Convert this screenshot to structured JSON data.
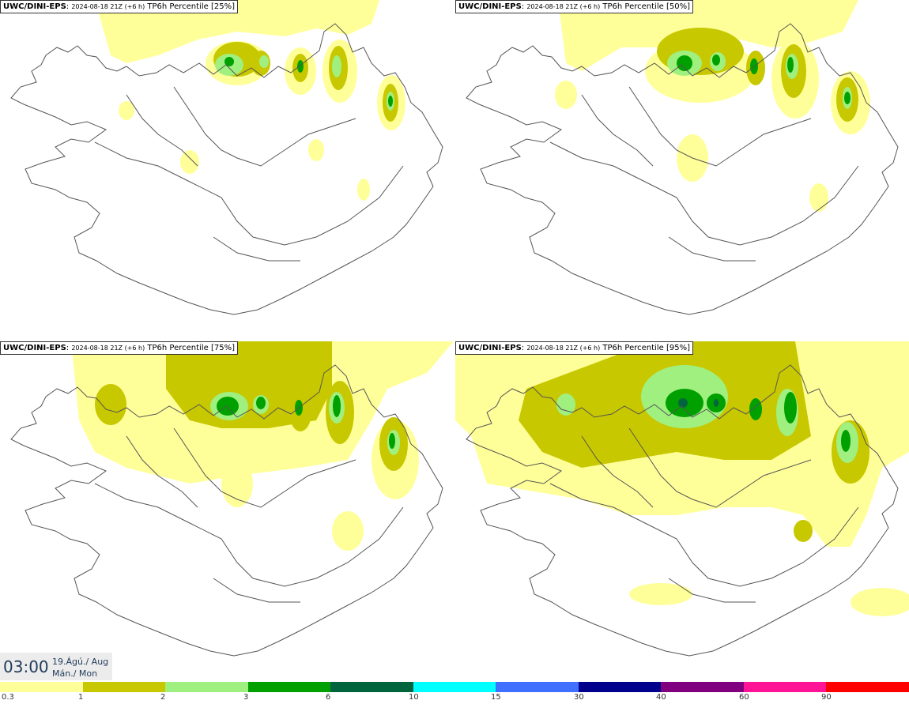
{
  "panels": [
    {
      "model": "UWC/DINI-EPS",
      "run": "2024-08-18 21Z (+6 h)",
      "field": "TP6h Percentile [25%]"
    },
    {
      "model": "UWC/DINI-EPS",
      "run": "2024-08-18 21Z (+6 h)",
      "field": "TP6h Percentile [50%]"
    },
    {
      "model": "UWC/DINI-EPS",
      "run": "2024-08-18 21Z (+6 h)",
      "field": "TP6h Percentile [75%]"
    },
    {
      "model": "UWC/DINI-EPS",
      "run": "2024-08-18 21Z (+6 h)",
      "field": "TP6h Percentile [95%]"
    }
  ],
  "valid_time": {
    "time": "03:00",
    "date_line": "19.Ágú./ Aug",
    "day_line": "Mán./ Mon"
  },
  "legend": {
    "levels": [
      "0.3",
      "1",
      "2",
      "3",
      "6",
      "10",
      "15",
      "30",
      "40",
      "60",
      "90"
    ],
    "colors": [
      "#ffff99",
      "#c8c800",
      "#a0f080",
      "#00a000",
      "#00643c",
      "#00ffff",
      "#4070ff",
      "#00008c",
      "#800080",
      "#ff1496",
      "#ff0000"
    ]
  }
}
